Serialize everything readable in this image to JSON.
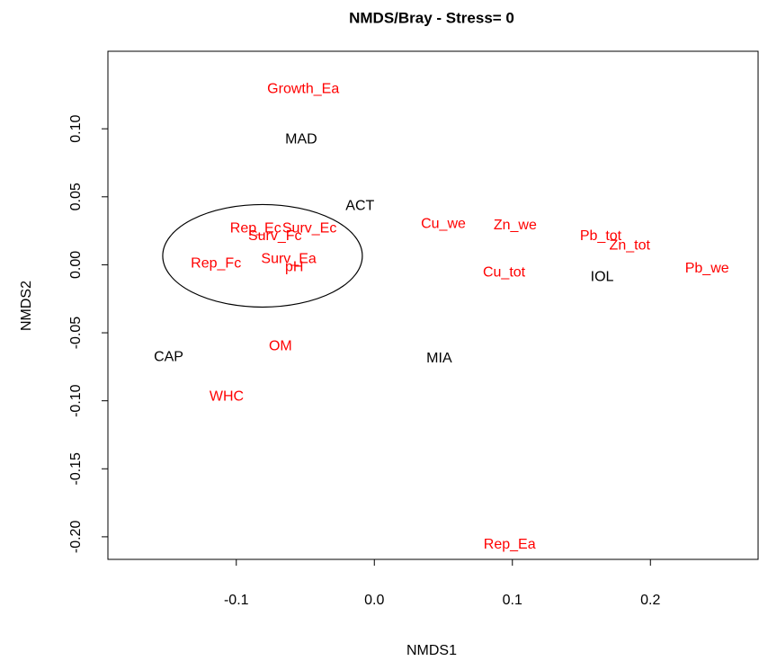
{
  "chart_data": {
    "type": "scatter",
    "title": "NMDS/Bray - Stress= 0",
    "x_label": "NMDS1",
    "y_label": "NMDS2",
    "xlim": [
      -0.193,
      0.278
    ],
    "ylim": [
      -0.2166,
      0.157
    ],
    "xticks": [
      {
        "value": -0.1,
        "label": "-0.1"
      },
      {
        "value": 0,
        "label": "0.0"
      },
      0.1,
      0.2
    ],
    "yticks": [
      {
        "value": -0.2,
        "label": "-0.20"
      },
      {
        "value": -0.15,
        "label": "-0.15"
      },
      {
        "value": -0.1,
        "label": "-0.10"
      },
      {
        "value": -0.05,
        "label": "-0.05"
      },
      {
        "value": 0,
        "label": "0.00"
      },
      {
        "value": 0.05,
        "label": "0.05"
      },
      {
        "value": 0.1,
        "label": "0.10"
      }
    ],
    "points": [
      {
        "label": "Growth_Ea",
        "x": -0.0515,
        "y": 0.129,
        "color": "#ff0000"
      },
      {
        "label": "MAD",
        "x": -0.053,
        "y": 0.092,
        "color": "#000000"
      },
      {
        "label": "ACT",
        "x": -0.0104,
        "y": 0.043,
        "color": "#000000"
      },
      {
        "label": "Cu_we",
        "x": 0.05,
        "y": 0.03,
        "color": "#ff0000"
      },
      {
        "label": "Zn_we",
        "x": 0.102,
        "y": 0.029,
        "color": "#ff0000"
      },
      {
        "label": "Pb_tot",
        "x": 0.164,
        "y": 0.021,
        "color": "#ff0000"
      },
      {
        "label": "Zn_tot",
        "x": 0.185,
        "y": 0.014,
        "color": "#ff0000"
      },
      {
        "label": "Pb_we",
        "x": 0.241,
        "y": -0.003,
        "color": "#ff0000"
      },
      {
        "label": "Cu_tot",
        "x": 0.094,
        "y": -0.006,
        "color": "#ff0000"
      },
      {
        "label": "IOL",
        "x": 0.165,
        "y": -0.009,
        "color": "#000000"
      },
      {
        "label": "Rep_Ec",
        "x": -0.086,
        "y": 0.0265,
        "color": "#ff0000"
      },
      {
        "label": "Surv_Ec",
        "x": -0.047,
        "y": 0.0265,
        "color": "#ff0000"
      },
      {
        "label": "Surv_Fc",
        "x": -0.072,
        "y": 0.021,
        "color": "#ff0000"
      },
      {
        "label": "Rep_Fc",
        "x": -0.1147,
        "y": 0.0007,
        "color": "#ff0000"
      },
      {
        "label": "Surv_Ea",
        "x": -0.062,
        "y": 0.004,
        "color": "#ff0000"
      },
      {
        "label": "pH",
        "x": -0.058,
        "y": -0.002,
        "color": "#ff0000"
      },
      {
        "label": "OM",
        "x": -0.068,
        "y": -0.06,
        "color": "#ff0000"
      },
      {
        "label": "CAP",
        "x": -0.149,
        "y": -0.068,
        "color": "#000000"
      },
      {
        "label": "MIA",
        "x": 0.047,
        "y": -0.069,
        "color": "#000000"
      },
      {
        "label": "WHC",
        "x": -0.107,
        "y": -0.097,
        "color": "#ff0000"
      },
      {
        "label": "Rep_Ea",
        "x": 0.098,
        "y": -0.206,
        "color": "#ff0000"
      }
    ],
    "ellipse": {
      "cx": -0.081,
      "cy": 0.0066,
      "rx": 0.0723,
      "ry": 0.0377
    }
  }
}
